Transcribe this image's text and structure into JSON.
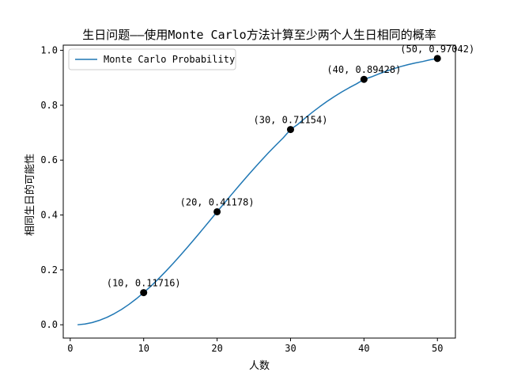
{
  "chart_data": {
    "type": "line",
    "title": "生日问题——使用Monte Carlo方法计算至少两个人生日相同的概率",
    "xlabel": "人数",
    "ylabel": "相同生日的可能性",
    "xlim": [
      -0.95,
      52.45
    ],
    "ylim": [
      -0.0485,
      1.019
    ],
    "xticks": [
      0,
      10,
      20,
      30,
      40,
      50
    ],
    "yticks": [
      0.0,
      0.2,
      0.4,
      0.6,
      0.8,
      1.0
    ],
    "xtick_labels": [
      "0",
      "10",
      "20",
      "30",
      "40",
      "50"
    ],
    "ytick_labels": [
      "0.0",
      "0.2",
      "0.4",
      "0.6",
      "0.8",
      "1.0"
    ],
    "grid": false,
    "legend_position": "upper left",
    "series": [
      {
        "name": "Monte Carlo Probability",
        "color": "#1f77b4",
        "x": [
          1,
          2,
          3,
          4,
          5,
          6,
          7,
          8,
          9,
          10,
          11,
          12,
          13,
          14,
          15,
          16,
          17,
          18,
          19,
          20,
          21,
          22,
          23,
          24,
          25,
          26,
          27,
          28,
          29,
          30,
          31,
          32,
          33,
          34,
          35,
          36,
          37,
          38,
          39,
          40,
          41,
          42,
          43,
          44,
          45,
          46,
          47,
          48,
          49,
          50
        ],
        "y": [
          0.0,
          0.0027,
          0.0082,
          0.0164,
          0.0271,
          0.0405,
          0.0562,
          0.0743,
          0.0946,
          0.11716,
          0.1411,
          0.167,
          0.1944,
          0.2231,
          0.2529,
          0.2836,
          0.315,
          0.3469,
          0.3791,
          0.41178,
          0.4437,
          0.4757,
          0.5073,
          0.5383,
          0.5687,
          0.5982,
          0.6269,
          0.6545,
          0.681,
          0.71154,
          0.7305,
          0.7533,
          0.775,
          0.7953,
          0.8144,
          0.8322,
          0.8487,
          0.864,
          0.8782,
          0.89428,
          0.9032,
          0.914,
          0.9238,
          0.9326,
          0.941,
          0.948,
          0.954,
          0.9593,
          0.9656,
          0.97042
        ]
      }
    ],
    "highlight_points": [
      {
        "x": 10,
        "y": 0.11716,
        "label": "(10, 0.11716)"
      },
      {
        "x": 20,
        "y": 0.41178,
        "label": "(20, 0.41178)"
      },
      {
        "x": 30,
        "y": 0.71154,
        "label": "(30, 0.71154)"
      },
      {
        "x": 40,
        "y": 0.89428,
        "label": "(40, 0.89428)"
      },
      {
        "x": 50,
        "y": 0.97042,
        "label": "(50, 0.97042)"
      }
    ]
  }
}
